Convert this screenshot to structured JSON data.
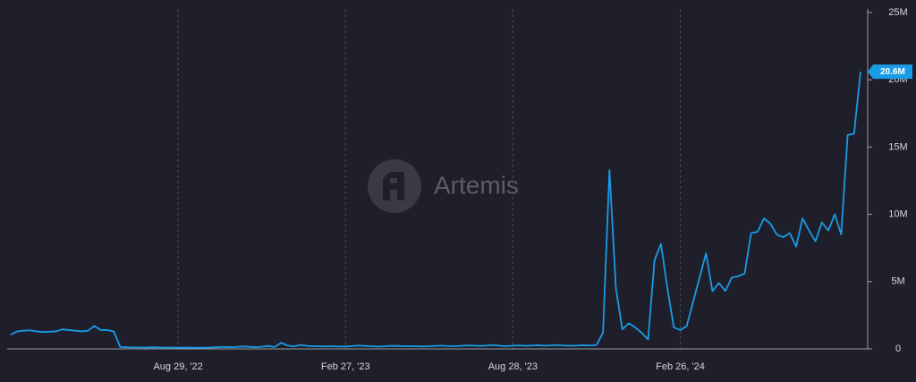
{
  "chart_data": {
    "type": "line",
    "watermark": "Artemis",
    "x": [
      "2022-02-28",
      "2022-03-07",
      "2022-03-14",
      "2022-03-21",
      "2022-03-28",
      "2022-04-04",
      "2022-04-11",
      "2022-04-18",
      "2022-04-25",
      "2022-05-02",
      "2022-05-09",
      "2022-05-16",
      "2022-05-23",
      "2022-05-30",
      "2022-06-06",
      "2022-06-13",
      "2022-06-20",
      "2022-06-27",
      "2022-07-04",
      "2022-07-11",
      "2022-07-18",
      "2022-07-25",
      "2022-08-01",
      "2022-08-08",
      "2022-08-15",
      "2022-08-22",
      "2022-08-29",
      "2022-09-05",
      "2022-09-12",
      "2022-09-19",
      "2022-09-26",
      "2022-10-03",
      "2022-10-10",
      "2022-10-17",
      "2022-10-24",
      "2022-10-31",
      "2022-11-07",
      "2022-11-14",
      "2022-11-21",
      "2022-11-28",
      "2022-12-05",
      "2022-12-12",
      "2022-12-19",
      "2022-12-26",
      "2023-01-02",
      "2023-01-09",
      "2023-01-16",
      "2023-01-23",
      "2023-01-30",
      "2023-02-06",
      "2023-02-13",
      "2023-02-20",
      "2023-02-27",
      "2023-03-06",
      "2023-03-13",
      "2023-03-20",
      "2023-03-27",
      "2023-04-03",
      "2023-04-10",
      "2023-04-17",
      "2023-04-24",
      "2023-05-01",
      "2023-05-08",
      "2023-05-15",
      "2023-05-22",
      "2023-05-29",
      "2023-06-05",
      "2023-06-12",
      "2023-06-19",
      "2023-06-26",
      "2023-07-03",
      "2023-07-10",
      "2023-07-17",
      "2023-07-24",
      "2023-07-31",
      "2023-08-07",
      "2023-08-14",
      "2023-08-21",
      "2023-08-28",
      "2023-09-04",
      "2023-09-11",
      "2023-09-18",
      "2023-09-25",
      "2023-10-02",
      "2023-10-09",
      "2023-10-16",
      "2023-10-23",
      "2023-10-30",
      "2023-11-06",
      "2023-11-13",
      "2023-11-20",
      "2023-11-27",
      "2023-12-04",
      "2023-12-11",
      "2023-12-18",
      "2023-12-25",
      "2024-01-01",
      "2024-01-08",
      "2024-01-15",
      "2024-01-22",
      "2024-01-29",
      "2024-02-05",
      "2024-02-12",
      "2024-02-19",
      "2024-02-26",
      "2024-03-04",
      "2024-03-11",
      "2024-03-18",
      "2024-03-25",
      "2024-04-01",
      "2024-04-08",
      "2024-04-15",
      "2024-04-22",
      "2024-04-29",
      "2024-05-06",
      "2024-05-13",
      "2024-05-20",
      "2024-05-27",
      "2024-06-03",
      "2024-06-10",
      "2024-06-17",
      "2024-06-24",
      "2024-07-01",
      "2024-07-08",
      "2024-07-15",
      "2024-07-22",
      "2024-07-29",
      "2024-08-05",
      "2024-08-12",
      "2024-08-19",
      "2024-08-26",
      "2024-09-02",
      "2024-09-09"
    ],
    "series": [
      {
        "color": "#1a9be6",
        "values": [
          1050000,
          1300000,
          1350000,
          1380000,
          1300000,
          1250000,
          1280000,
          1300000,
          1450000,
          1400000,
          1350000,
          1300000,
          1350000,
          1700000,
          1400000,
          1400000,
          1300000,
          150000,
          120000,
          110000,
          110000,
          100000,
          120000,
          110000,
          100000,
          100000,
          90000,
          100000,
          90000,
          80000,
          90000,
          100000,
          120000,
          150000,
          130000,
          140000,
          180000,
          150000,
          130000,
          160000,
          220000,
          140000,
          450000,
          250000,
          180000,
          300000,
          220000,
          200000,
          190000,
          180000,
          200000,
          170000,
          180000,
          210000,
          250000,
          220000,
          200000,
          170000,
          190000,
          230000,
          220000,
          200000,
          210000,
          190000,
          180000,
          200000,
          220000,
          240000,
          210000,
          200000,
          230000,
          260000,
          240000,
          220000,
          250000,
          280000,
          230000,
          210000,
          240000,
          260000,
          230000,
          250000,
          270000,
          240000,
          260000,
          280000,
          250000,
          230000,
          250000,
          270000,
          260000,
          300000,
          1200000,
          13300000,
          4500000,
          1450000,
          1900000,
          1600000,
          1200000,
          700000,
          6600000,
          7800000,
          4500000,
          1600000,
          1400000,
          1700000,
          3500000,
          5300000,
          7100000,
          4300000,
          4900000,
          4300000,
          5300000,
          5400000,
          5600000,
          8600000,
          8700000,
          9700000,
          9300000,
          8500000,
          8300000,
          8600000,
          7600000,
          9700000,
          8800000,
          8000000,
          9400000,
          8800000,
          10000000,
          8500000,
          15900000,
          16000000,
          20600000
        ],
        "value_labels": {
          "132": "20.6M"
        }
      }
    ],
    "xlim": [
      "2022-02-28",
      "2024-09-09"
    ],
    "xticks": [
      {
        "value": "2022-08-29",
        "label": "Aug 29, '22"
      },
      {
        "value": "2023-02-27",
        "label": "Feb 27, '23"
      },
      {
        "value": "2023-08-28",
        "label": "Aug 28, '23"
      },
      {
        "value": "2024-02-26",
        "label": "Feb 26, '24"
      }
    ],
    "ylim": [
      0,
      25000000
    ],
    "yticks": [
      0,
      {
        "value": 5000000,
        "label": "5M"
      },
      {
        "value": 10000000,
        "label": "10M"
      },
      {
        "value": 15000000,
        "label": "15M"
      },
      {
        "value": 20000000,
        "label": "20M"
      },
      {
        "value": 25000000,
        "label": "25M"
      }
    ],
    "grid": true
  }
}
